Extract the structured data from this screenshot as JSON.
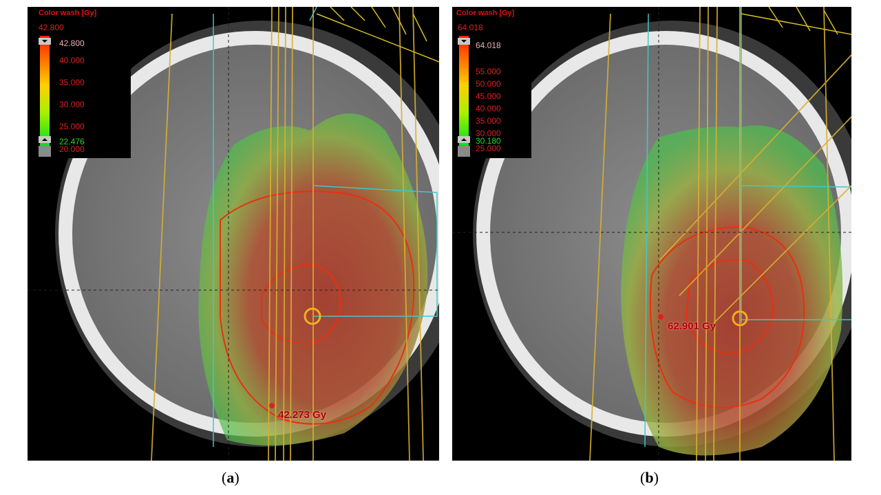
{
  "panels": [
    {
      "caption_open": "(",
      "caption_letter": "a",
      "caption_close": ")",
      "legend": {
        "title": "Color wash [Gy]",
        "max_value": "42.800",
        "ticks": [
          "42.800",
          "40.000",
          "35.000",
          "30.000",
          "25.000"
        ],
        "min_value": "22.476",
        "below_min": "20.000"
      },
      "dose_point_label": "42.273 Gy"
    },
    {
      "caption_open": "(",
      "caption_letter": "b",
      "caption_close": ")",
      "legend": {
        "title": "Color wash [Gy]",
        "max_value": "64.018",
        "ticks": [
          "64.018",
          "55.000",
          "50.000",
          "45.000",
          "40.000",
          "35.000",
          "30.000"
        ],
        "min_value": "30.180",
        "below_min": "25.000"
      },
      "dose_point_label": "62.901 Gy"
    }
  ],
  "colors": {
    "dose_high": "#a83a2a",
    "dose_low": "#4cc04c",
    "isodose_line": "#e83010",
    "beam_line": "#d8b030",
    "field_edge": "#40c8c8",
    "legend_text": "#e02020"
  }
}
